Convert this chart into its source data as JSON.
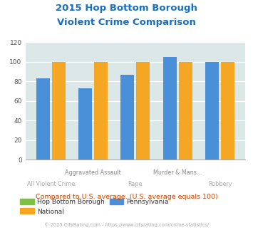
{
  "title_line1": "2015 Hop Bottom Borough",
  "title_line2": "Violent Crime Comparison",
  "title_color": "#1a6fbe",
  "pennsylvania_values": [
    83,
    73,
    87,
    105,
    100
  ],
  "national_values": [
    100,
    100,
    100,
    100,
    100
  ],
  "hop_bottom_values": [
    0,
    0,
    0,
    0,
    0
  ],
  "ylim": [
    0,
    120
  ],
  "yticks": [
    0,
    20,
    40,
    60,
    80,
    100,
    120
  ],
  "bg_color": "#dce8e8",
  "bar_color_hop": "#7dc142",
  "bar_color_national": "#f5a623",
  "bar_color_pennsylvania": "#4a90d9",
  "top_xlabels": [
    "",
    "Aggravated Assault",
    "",
    "Murder & Mans...",
    ""
  ],
  "bot_xlabels": [
    "All Violent Crime",
    "",
    "Rape",
    "",
    "Robbery"
  ],
  "top_xlabel_color": "#888888",
  "bot_xlabel_color": "#aaaaaa",
  "subtitle_note": "Compared to U.S. average. (U.S. average equals 100)",
  "subtitle_note_color": "#cc4400",
  "copyright": "© 2025 CityRating.com - https://www.cityrating.com/crime-statistics/",
  "copyright_color": "#aaaaaa",
  "legend_label_hop": "Hop Bottom Borough",
  "legend_label_national": "National",
  "legend_label_pennsylvania": "Pennsylvania",
  "legend_text_color": "#333333"
}
